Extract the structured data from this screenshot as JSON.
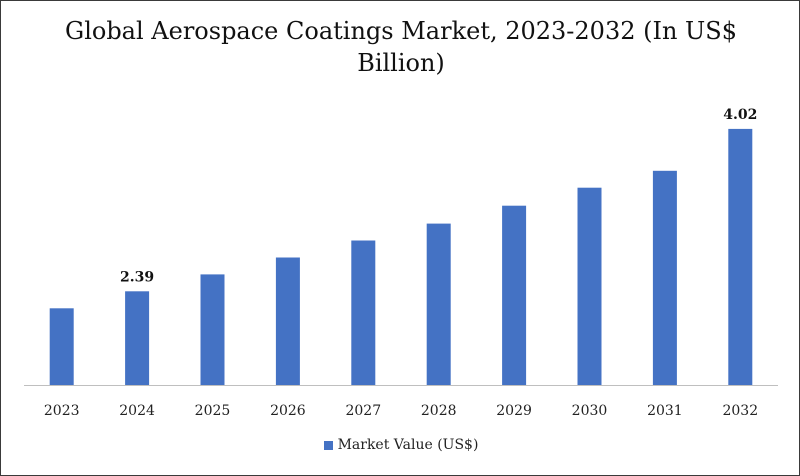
{
  "chart_data": {
    "type": "bar",
    "title": "Global Aerospace Coatings Market, 2023-2032 (In US$ Billion)",
    "xlabel": "",
    "ylabel": "",
    "categories": [
      "2023",
      "2024",
      "2025",
      "2026",
      "2027",
      "2028",
      "2029",
      "2030",
      "2031",
      "2032"
    ],
    "series": [
      {
        "name": "Market Value (US$)",
        "color": "#4472C4",
        "values": [
          2.22,
          2.39,
          2.56,
          2.73,
          2.9,
          3.07,
          3.25,
          3.43,
          3.6,
          4.02
        ]
      }
    ],
    "data_labels": [
      {
        "category": "2024",
        "text": "2.39"
      },
      {
        "category": "2032",
        "text": "4.02"
      }
    ],
    "ylim": [
      1.45,
      4.2
    ],
    "grid": false,
    "y_axis_visible": false,
    "legend_position": "bottom"
  }
}
